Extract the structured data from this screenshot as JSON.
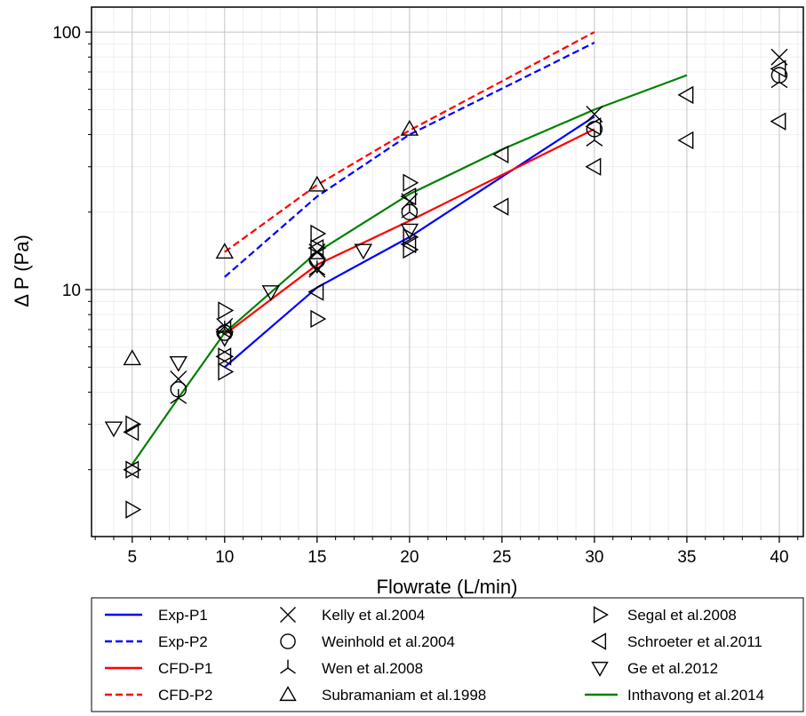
{
  "chart_data": {
    "type": "line",
    "xlabel": "Flowrate (L/min)",
    "ylabel": "Δ P (Pa)",
    "xlim": [
      2.8,
      41.3
    ],
    "ylim": [
      1.1,
      125
    ],
    "yscale": "log",
    "grid": true,
    "xticks": [
      5,
      10,
      15,
      20,
      25,
      30,
      35,
      40
    ],
    "yticks": [
      10,
      100
    ],
    "legend_position": "bottom",
    "colors": {
      "blue": "#0000ff",
      "red": "#ff0000",
      "green": "#008000",
      "marker": "#000000"
    },
    "series": [
      {
        "name": "Exp-P1",
        "kind": "line",
        "color": "#0000ff",
        "dash": "solid",
        "x": [
          10,
          15,
          20,
          30
        ],
        "y": [
          5.0,
          10.2,
          16.0,
          47.0
        ]
      },
      {
        "name": "Exp-P2",
        "kind": "line",
        "color": "#0000ff",
        "dash": "dashed",
        "x": [
          10,
          15,
          20,
          30
        ],
        "y": [
          11.2,
          23.0,
          40.0,
          91.0
        ]
      },
      {
        "name": "CFD-P1",
        "kind": "line",
        "color": "#ff0000",
        "dash": "solid",
        "x": [
          10,
          15,
          20,
          30
        ],
        "y": [
          6.7,
          12.5,
          18.5,
          42.0
        ]
      },
      {
        "name": "CFD-P2",
        "kind": "line",
        "color": "#ff0000",
        "dash": "dashed",
        "x": [
          10,
          15,
          20,
          30
        ],
        "y": [
          14.0,
          25.5,
          41.5,
          100.0
        ]
      },
      {
        "name": "Kelly et al.2004",
        "kind": "marker",
        "marker": "x",
        "x": [
          7.5,
          10,
          15,
          15,
          20,
          30,
          40
        ],
        "y": [
          4.5,
          7.2,
          14.0,
          12.0,
          22.0,
          48.0,
          80.0
        ]
      },
      {
        "name": "Weinhold et al.2004",
        "kind": "marker",
        "marker": "circle",
        "x": [
          7.5,
          10,
          15,
          20,
          30,
          40
        ],
        "y": [
          4.1,
          6.8,
          13.0,
          20.0,
          42.0,
          68.0
        ]
      },
      {
        "name": "Wen et al.2008",
        "kind": "marker",
        "marker": "tri_down",
        "x": [
          7.5,
          10,
          15,
          20,
          30,
          40
        ],
        "y": [
          3.8,
          7.0,
          12.0,
          20.0,
          38.0,
          64.0
        ]
      },
      {
        "name": "Subramaniam et al.1998",
        "kind": "marker",
        "marker": "triangle_up",
        "x": [
          5,
          10,
          15,
          20
        ],
        "y": [
          5.4,
          14.0,
          25.5,
          42.0
        ]
      },
      {
        "name": "Segal et al.2008",
        "kind": "marker",
        "marker": "triangle_right",
        "x": [
          5,
          5,
          5,
          10,
          10,
          10,
          15,
          15,
          15,
          20,
          20,
          20
        ],
        "y": [
          1.4,
          2.0,
          3.0,
          4.8,
          5.5,
          8.3,
          7.7,
          16.5,
          14.5,
          14.3,
          26.0,
          16.0
        ]
      },
      {
        "name": "Schroeter et al.2011",
        "kind": "marker",
        "marker": "triangle_left",
        "x": [
          5,
          5,
          10,
          10,
          15,
          15,
          20,
          20,
          25,
          25,
          30,
          30,
          35,
          35,
          40,
          40
        ],
        "y": [
          2.0,
          2.8,
          5.5,
          7.0,
          9.8,
          14.5,
          15.0,
          23.0,
          21.0,
          33.5,
          30.0,
          43.0,
          38.0,
          57.0,
          45.0,
          72.0
        ]
      },
      {
        "name": "Ge et al.2012",
        "kind": "marker",
        "marker": "triangle_down",
        "x": [
          4,
          7.5,
          10,
          12.5,
          15,
          17.5,
          20
        ],
        "y": [
          2.9,
          5.2,
          6.5,
          9.8,
          12.5,
          14.2,
          17.0
        ]
      },
      {
        "name": "Inthavong et al.2014",
        "kind": "line",
        "color": "#008000",
        "dash": "solid",
        "x": [
          5,
          7.5,
          10,
          15,
          20,
          25,
          30,
          35
        ],
        "y": [
          2.1,
          3.8,
          6.8,
          14.0,
          23.5,
          35.0,
          50.0,
          68.0
        ]
      }
    ]
  }
}
